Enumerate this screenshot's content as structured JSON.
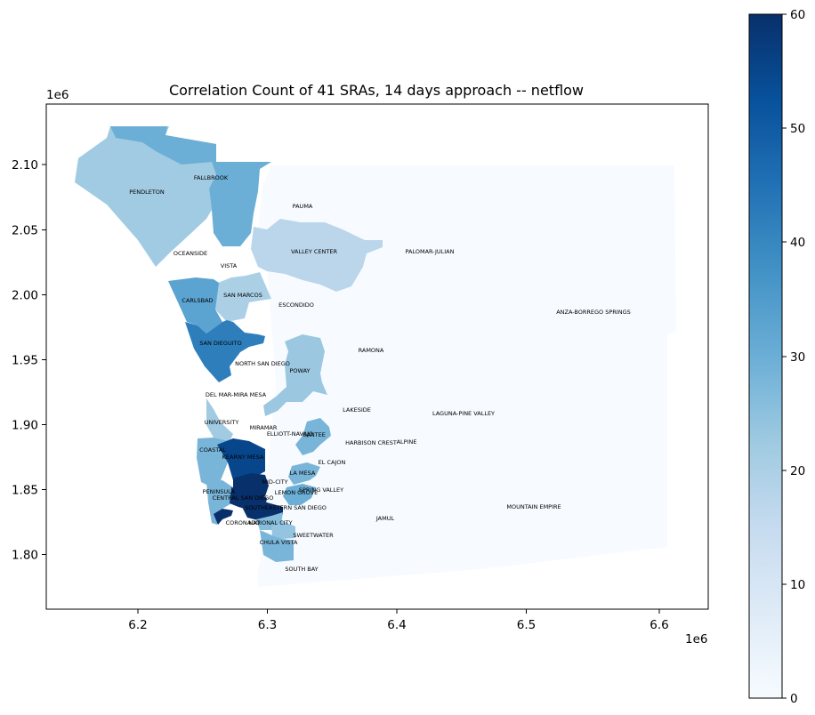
{
  "map": {
    "title": "Correlation Count of 41 SRAs, 14 days approach -- netflow",
    "x_offset": "1e6",
    "y_offset": "1e6",
    "x_ticks": [
      "6.2",
      "6.3",
      "6.4",
      "6.5",
      "6.6"
    ],
    "y_ticks": [
      "2.10",
      "2.05",
      "2.00",
      "1.95",
      "1.90",
      "1.85",
      "1.80"
    ],
    "colorbar": {
      "cmap": "Blues",
      "min": 0,
      "max": 60,
      "ticks": [
        "0",
        "10",
        "20",
        "30",
        "40",
        "50",
        "60"
      ]
    },
    "regions": [
      {
        "name": "PENDLETON",
        "value": 22
      },
      {
        "name": "FALLBROOK",
        "value": 30
      },
      {
        "name": "PAUMA",
        "value": 0
      },
      {
        "name": "OCEANSIDE",
        "value": 0
      },
      {
        "name": "VISTA",
        "value": 0
      },
      {
        "name": "VALLEY CENTER",
        "value": 17
      },
      {
        "name": "PALOMAR-JULIAN",
        "value": 0
      },
      {
        "name": "SAN MARCOS",
        "value": 20
      },
      {
        "name": "CARLSBAD",
        "value": 33
      },
      {
        "name": "ESCONDIDO",
        "value": 0
      },
      {
        "name": "ANZA-BORREGO SPRINGS",
        "value": 0
      },
      {
        "name": "SAN DIEGUITO",
        "value": 42
      },
      {
        "name": "RAMONA",
        "value": 0
      },
      {
        "name": "NORTH SAN DIEGO",
        "value": 0
      },
      {
        "name": "POWAY",
        "value": 23
      },
      {
        "name": "DEL MAR-MIRA MESA",
        "value": 0
      },
      {
        "name": "LAKESIDE",
        "value": 0
      },
      {
        "name": "LAGUNA-PINE VALLEY",
        "value": 0
      },
      {
        "name": "UNIVERSITY",
        "value": 22
      },
      {
        "name": "MIRAMAR",
        "value": 0
      },
      {
        "name": "ELLIOTT-NAVAJO",
        "value": 0
      },
      {
        "name": "SANTEE",
        "value": 28
      },
      {
        "name": "HARBISON CREST",
        "value": 0
      },
      {
        "name": "ALPINE",
        "value": 0
      },
      {
        "name": "COASTAL",
        "value": 28
      },
      {
        "name": "KEARNY MESA",
        "value": 55
      },
      {
        "name": "EL CAJON",
        "value": 0
      },
      {
        "name": "LA MESA",
        "value": 28
      },
      {
        "name": "MID-CITY",
        "value": 60
      },
      {
        "name": "SPRING VALLEY",
        "value": 30
      },
      {
        "name": "LEMON GROVE",
        "value": 0
      },
      {
        "name": "PENINSULA",
        "value": 28
      },
      {
        "name": "CENTRAL SAN DIEGO",
        "value": 60
      },
      {
        "name": "SOUTHEASTERN SAN DIEGO",
        "value": 60
      },
      {
        "name": "JAMUL",
        "value": 0
      },
      {
        "name": "MOUNTAIN EMPIRE",
        "value": 0
      },
      {
        "name": "CORONADO",
        "value": 60
      },
      {
        "name": "NATIONAL CITY",
        "value": 26
      },
      {
        "name": "SWEETWATER",
        "value": 24
      },
      {
        "name": "CHULA VISTA",
        "value": 28
      },
      {
        "name": "SOUTH BAY",
        "value": 0
      }
    ]
  }
}
